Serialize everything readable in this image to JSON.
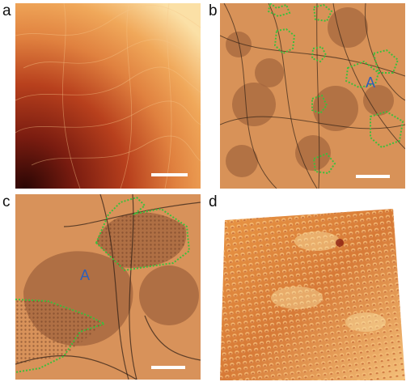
{
  "figure": {
    "panels": [
      {
        "letter": "a"
      },
      {
        "letter": "b",
        "annotation": "A"
      },
      {
        "letter": "c",
        "annotation": "A"
      },
      {
        "letter": "d"
      }
    ]
  },
  "colors": {
    "boundary_dotted": "#3cbf3c",
    "annotation_text": "#2f5fb8",
    "scale_bar": "#ffffff",
    "stm_light": "#f0c27a",
    "stm_mid": "#e0813f",
    "stm_dark": "#7a1c10"
  },
  "icons": [
    "scale-bar",
    "dotted-domain-boundary"
  ]
}
